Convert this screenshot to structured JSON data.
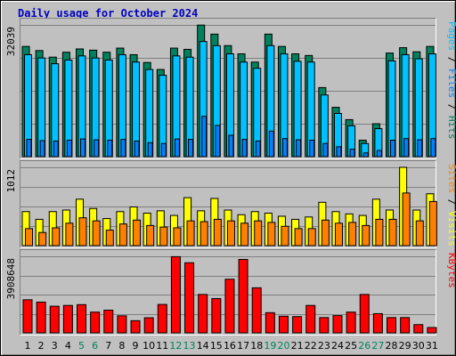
{
  "title": "Daily usage for October 2024",
  "colors": {
    "background": "#c0c0c0",
    "title": "#0000c0",
    "hits": "#00805c",
    "files": "#0080ff",
    "pages": "#00c0ff",
    "visits": "#ffff00",
    "sites": "#ff8000",
    "kbytes": "#ff0000",
    "weekend": "#00805c",
    "weekday": "#000000"
  },
  "chart_data": [
    {
      "type": "bar",
      "panel": "hits-files-pages",
      "ymax_label": "32039",
      "ymax": 32039,
      "legend": [
        {
          "text": "Pages",
          "color": "#00c0ff"
        },
        {
          "text": " / ",
          "color": "#000000"
        },
        {
          "text": "Files",
          "color": "#0080ff"
        },
        {
          "text": " / ",
          "color": "#000000"
        },
        {
          "text": "Hits",
          "color": "#00805c"
        }
      ],
      "categories": [
        "1",
        "2",
        "3",
        "4",
        "5",
        "6",
        "7",
        "8",
        "9",
        "10",
        "11",
        "12",
        "13",
        "14",
        "15",
        "16",
        "17",
        "18",
        "19",
        "20",
        "21",
        "22",
        "23",
        "24",
        "25",
        "26",
        "27",
        "28",
        "29",
        "30",
        "31"
      ],
      "series": [
        {
          "name": "Hits",
          "values": [
            26800,
            25800,
            24200,
            25400,
            26200,
            25900,
            25400,
            26400,
            24800,
            22900,
            21200,
            26400,
            26100,
            32000,
            29800,
            27000,
            25000,
            23000,
            29800,
            26800,
            25000,
            24600,
            16800,
            12000,
            9000,
            4000,
            8000,
            25200,
            26500,
            25500,
            26800
          ]
        },
        {
          "name": "Files",
          "values": [
            24800,
            24000,
            22600,
            23500,
            24500,
            24000,
            23500,
            24800,
            23000,
            21200,
            19800,
            24500,
            24200,
            28000,
            27000,
            25000,
            23000,
            21500,
            27000,
            25000,
            23200,
            23000,
            15000,
            10500,
            7500,
            3200,
            6800,
            23300,
            24800,
            23800,
            25000
          ]
        },
        {
          "name": "Pages",
          "values": [
            4200,
            3900,
            3800,
            4000,
            4300,
            4100,
            4000,
            4200,
            3800,
            3400,
            3200,
            4300,
            4200,
            9800,
            7600,
            5200,
            4200,
            3800,
            6200,
            4400,
            4100,
            4000,
            3200,
            2400,
            1800,
            900,
            1500,
            4000,
            4400,
            4100,
            4400
          ]
        }
      ]
    },
    {
      "type": "bar",
      "panel": "visits-sites",
      "ymax_label": "1012",
      "ymax": 1012,
      "legend": [
        {
          "text": "Sites",
          "color": "#ff8000"
        },
        {
          "text": " / ",
          "color": "#000000"
        },
        {
          "text": "Visits",
          "color": "#ffff00"
        }
      ],
      "series": [
        {
          "name": "Visits",
          "values": [
            440,
            340,
            440,
            460,
            600,
            480,
            350,
            440,
            500,
            420,
            450,
            390,
            620,
            450,
            610,
            460,
            400,
            440,
            420,
            380,
            340,
            370,
            560,
            440,
            410,
            390,
            600,
            460,
            1012,
            460,
            670
          ]
        },
        {
          "name": "Sites",
          "values": [
            220,
            170,
            230,
            290,
            360,
            320,
            200,
            280,
            330,
            260,
            240,
            230,
            320,
            310,
            340,
            320,
            290,
            320,
            300,
            250,
            220,
            220,
            330,
            290,
            300,
            260,
            340,
            340,
            680,
            320,
            570
          ]
        }
      ]
    },
    {
      "type": "bar",
      "panel": "kbytes",
      "ymax_label": "3908648",
      "ymax": 3908648,
      "legend": [
        {
          "text": "KBytes",
          "color": "#ff0000"
        }
      ],
      "series": [
        {
          "name": "KBytes",
          "values": [
            1690000,
            1570000,
            1360000,
            1400000,
            1440000,
            1060000,
            1160000,
            870000,
            620000,
            770000,
            1450000,
            3890000,
            3580000,
            1960000,
            1750000,
            2740000,
            3750000,
            2300000,
            1030000,
            850000,
            830000,
            1400000,
            780000,
            880000,
            1060000,
            1960000,
            980000,
            780000,
            780000,
            420000,
            0
          ]
        }
      ]
    }
  ],
  "xaxis": {
    "labels": [
      "1",
      "2",
      "3",
      "4",
      "5",
      "6",
      "7",
      "8",
      "9",
      "10",
      "11",
      "12",
      "13",
      "14",
      "15",
      "16",
      "17",
      "18",
      "19",
      "20",
      "21",
      "22",
      "23",
      "24",
      "25",
      "26",
      "27",
      "28",
      "29",
      "30",
      "31"
    ],
    "weekend_days": [
      "5",
      "6",
      "12",
      "13",
      "19",
      "20",
      "26",
      "27"
    ]
  }
}
